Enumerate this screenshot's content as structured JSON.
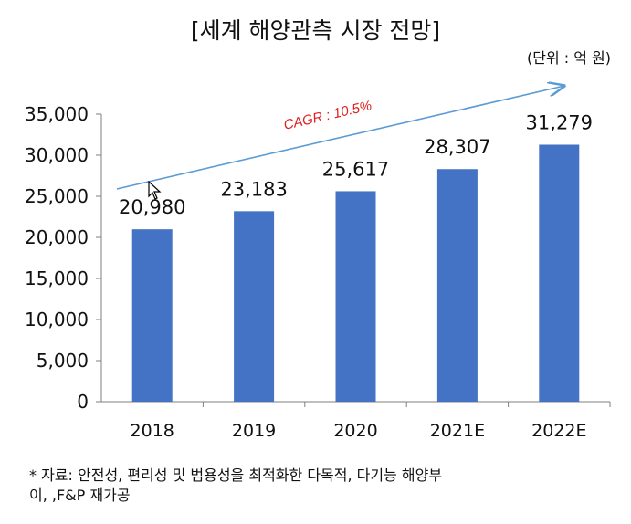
{
  "title": "[세계 해양관측 시장 전망]",
  "unit": "(단위 : 억 원)",
  "source_line1": "* 자료: 안전성, 편리성 및 범용성을 최적화한 다목적, 다기능 해양부",
  "source_line2": "이, ,F&P 재가공",
  "annotation": "CAGR : 10.5%",
  "colors": {
    "bar": "#4472C4",
    "arrow": "#5b9bd5",
    "annotation": "#e02020"
  },
  "chart_data": {
    "type": "bar",
    "title": "[세계 해양관측 시장 전망]",
    "categories": [
      "2018",
      "2019",
      "2020",
      "2021E",
      "2022E"
    ],
    "values": [
      20980,
      23183,
      25617,
      28307,
      31279
    ],
    "value_labels": [
      "20,980",
      "23,183",
      "25,617",
      "28,307",
      "31,279"
    ],
    "ylim": [
      0,
      35000
    ],
    "yticks": [
      0,
      5000,
      10000,
      15000,
      20000,
      25000,
      30000,
      35000
    ],
    "ytick_labels": [
      "0",
      "5,000",
      "10,000",
      "15,000",
      "20,000",
      "25,000",
      "30,000",
      "35,000"
    ],
    "xlabel": "",
    "ylabel": "",
    "grid": false,
    "legend": "none"
  }
}
